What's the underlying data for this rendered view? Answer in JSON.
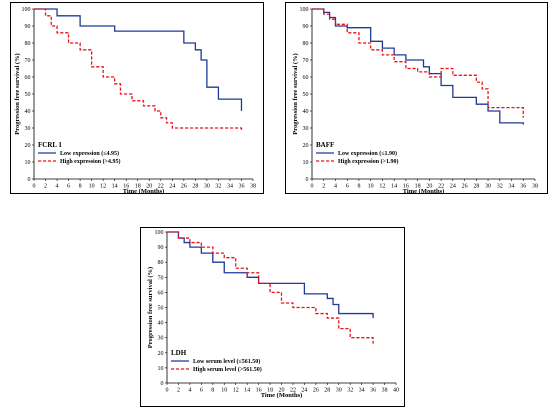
{
  "colors": {
    "low": "#1f3a9a",
    "high": "#e8141b",
    "axis": "#000000"
  },
  "chart_data": [
    {
      "type": "line",
      "xlabel": "Time (Months)",
      "ylabel": "Progression free survival (%)",
      "xlim": [
        0,
        38
      ],
      "ylim": [
        0,
        100
      ],
      "xticks": [
        0,
        2,
        4,
        6,
        8,
        10,
        12,
        14,
        16,
        18,
        20,
        22,
        24,
        26,
        28,
        30,
        32,
        34,
        36,
        38
      ],
      "yticks": [
        0,
        10,
        20,
        30,
        40,
        50,
        60,
        70,
        80,
        90,
        100
      ],
      "legend_title": "FCRL 1",
      "series": [
        {
          "name": "Low expression (≤4.95)",
          "style": "solid",
          "color_key": "low",
          "x": [
            0,
            4,
            4,
            8,
            8,
            14,
            14,
            26,
            26,
            28,
            28,
            29,
            29,
            30,
            30,
            32,
            32,
            36,
            36
          ],
          "y": [
            100,
            100,
            96,
            96,
            90,
            90,
            87,
            87,
            80,
            80,
            76,
            76,
            70,
            70,
            54,
            54,
            47,
            47,
            40
          ]
        },
        {
          "name": "High expression  (>4.95)",
          "style": "dashed",
          "color_key": "high",
          "x": [
            0,
            2,
            2,
            3,
            3,
            4,
            4,
            6,
            6,
            8,
            8,
            10,
            10,
            12,
            12,
            14,
            14,
            15,
            15,
            17,
            17,
            19,
            19,
            21,
            21,
            22,
            22,
            23,
            23,
            24,
            24,
            36,
            36
          ],
          "y": [
            100,
            100,
            96,
            96,
            90,
            90,
            86,
            86,
            80,
            80,
            76,
            76,
            66,
            66,
            60,
            60,
            56,
            56,
            50,
            50,
            46,
            46,
            43,
            43,
            40,
            40,
            36,
            36,
            33,
            33,
            30,
            30,
            28
          ]
        }
      ]
    },
    {
      "type": "line",
      "xlabel": "Time (Months)",
      "ylabel": "Progression free survival (%)",
      "xlim": [
        0,
        38
      ],
      "ylim": [
        0,
        100
      ],
      "xticks": [
        0,
        2,
        4,
        6,
        8,
        10,
        12,
        14,
        16,
        18,
        20,
        22,
        24,
        26,
        28,
        30,
        32,
        34,
        36,
        38
      ],
      "yticks": [
        0,
        10,
        20,
        30,
        40,
        50,
        60,
        70,
        80,
        90,
        100
      ],
      "legend_title": "BAFF",
      "series": [
        {
          "name": "Low expression (≤1.90)",
          "style": "solid",
          "color_key": "low",
          "x": [
            0,
            2,
            2,
            3,
            3,
            4,
            4,
            6,
            6,
            10,
            10,
            12,
            12,
            14,
            14,
            16,
            16,
            19,
            19,
            20,
            20,
            22,
            22,
            24,
            24,
            28,
            28,
            30,
            30,
            32,
            32,
            36,
            36
          ],
          "y": [
            100,
            100,
            98,
            98,
            95,
            95,
            90,
            90,
            89,
            89,
            81,
            81,
            77,
            77,
            73,
            73,
            70,
            70,
            66,
            66,
            62,
            62,
            55,
            55,
            48,
            48,
            44,
            44,
            40,
            40,
            33,
            33,
            32
          ]
        },
        {
          "name": "High expression (>1.90)",
          "style": "dashed",
          "color_key": "high",
          "x": [
            0,
            2,
            2,
            3,
            3,
            4,
            4,
            6,
            6,
            8,
            8,
            10,
            10,
            12,
            12,
            14,
            14,
            16,
            16,
            18,
            18,
            20,
            20,
            22,
            22,
            24,
            24,
            28,
            28,
            29,
            29,
            30,
            30,
            36,
            36
          ],
          "y": [
            100,
            100,
            97,
            97,
            94,
            94,
            91,
            91,
            86,
            86,
            80,
            80,
            76,
            76,
            73,
            73,
            69,
            69,
            65,
            65,
            63,
            63,
            60,
            60,
            65,
            65,
            61,
            61,
            57,
            57,
            53,
            53,
            42,
            42,
            36
          ]
        }
      ]
    },
    {
      "type": "line",
      "xlabel": "Time (Months)",
      "ylabel": "Progression free survival (%)",
      "xlim": [
        0,
        40
      ],
      "ylim": [
        0,
        100
      ],
      "xticks": [
        0,
        2,
        4,
        6,
        8,
        10,
        12,
        14,
        16,
        18,
        20,
        22,
        24,
        26,
        28,
        30,
        32,
        34,
        36,
        38,
        40
      ],
      "yticks": [
        0,
        10,
        20,
        30,
        40,
        50,
        60,
        70,
        80,
        90,
        100
      ],
      "legend_title": "LDH",
      "series": [
        {
          "name": "Low serum level (≤561.50)",
          "style": "solid",
          "color_key": "low",
          "x": [
            0,
            2,
            2,
            3,
            3,
            4,
            4,
            6,
            6,
            8,
            8,
            10,
            10,
            14,
            14,
            16,
            16,
            24,
            24,
            28,
            28,
            29,
            29,
            30,
            30,
            36,
            36
          ],
          "y": [
            100,
            100,
            96,
            96,
            93,
            93,
            90,
            90,
            86,
            86,
            80,
            80,
            73,
            73,
            70,
            70,
            66,
            66,
            59,
            59,
            56,
            56,
            52,
            52,
            46,
            46,
            43
          ]
        },
        {
          "name": "High serum level (>561.50)",
          "style": "dashed",
          "color_key": "high",
          "x": [
            0,
            2,
            2,
            4,
            4,
            6,
            6,
            8,
            8,
            10,
            10,
            12,
            12,
            14,
            14,
            16,
            16,
            18,
            18,
            20,
            20,
            22,
            22,
            26,
            26,
            28,
            28,
            30,
            30,
            32,
            32,
            36,
            36
          ],
          "y": [
            100,
            100,
            96,
            96,
            93,
            93,
            90,
            90,
            86,
            86,
            83,
            83,
            76,
            76,
            73,
            73,
            66,
            66,
            60,
            60,
            53,
            53,
            50,
            50,
            46,
            46,
            43,
            43,
            36,
            36,
            30,
            30,
            26
          ]
        }
      ]
    }
  ]
}
